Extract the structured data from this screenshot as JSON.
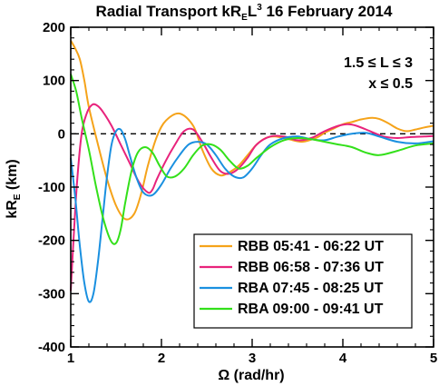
{
  "chart_data": {
    "type": "line",
    "title": {
      "prefix": "Radial Transport kR",
      "sub": "E",
      "mid": "L",
      "sup": "3",
      "suffix": " 16 February 2014"
    },
    "xlabel": "Ω (rad/hr)",
    "ylabel": {
      "main": "kR",
      "sub": "E",
      "unit": " (km)"
    },
    "xlim": [
      1,
      5
    ],
    "ylim": [
      -400,
      200
    ],
    "xticks": [
      1,
      2,
      3,
      4,
      5
    ],
    "yticks": [
      200,
      100,
      0,
      -100,
      -200,
      -300,
      -400
    ],
    "annotations": [
      "1.5 ≤ L ≤ 3",
      "x ≤ 0.5"
    ],
    "zero_line": "dashed",
    "legend_position": "lower-right",
    "series": [
      {
        "name": "RBB 05:41 - 06:22 UT",
        "color": "#f5a31a",
        "x": [
          1.0,
          1.05,
          1.1,
          1.15,
          1.2,
          1.3,
          1.4,
          1.5,
          1.6,
          1.7,
          1.78,
          1.85,
          1.95,
          2.05,
          2.2,
          2.35,
          2.45,
          2.55,
          2.65,
          2.75,
          2.85,
          2.95,
          3.05,
          3.15,
          3.25,
          3.4,
          3.55,
          3.7,
          3.8,
          3.9,
          4.0,
          4.1,
          4.2,
          4.32,
          4.4,
          4.5,
          4.6,
          4.7,
          4.8,
          4.9,
          5.0
        ],
        "y": [
          175,
          160,
          140,
          100,
          50,
          -20,
          -85,
          -135,
          -160,
          -150,
          -110,
          -60,
          -5,
          25,
          38,
          15,
          -30,
          -65,
          -78,
          -72,
          -60,
          -40,
          -20,
          -8,
          -5,
          -10,
          -15,
          -8,
          2,
          10,
          18,
          22,
          27,
          30,
          28,
          20,
          10,
          5,
          8,
          12,
          15
        ]
      },
      {
        "name": "RBB 06:58 - 07:36 UT",
        "color": "#e8237c",
        "x": [
          1.0,
          1.03,
          1.07,
          1.12,
          1.18,
          1.24,
          1.3,
          1.36,
          1.45,
          1.55,
          1.65,
          1.75,
          1.85,
          1.9,
          1.95,
          2.05,
          2.15,
          2.25,
          2.35,
          2.45,
          2.55,
          2.65,
          2.75,
          2.85,
          2.95,
          3.05,
          3.2,
          3.35,
          3.5,
          3.65,
          3.8,
          3.95,
          4.05,
          4.15,
          4.3,
          4.45,
          4.6,
          4.75,
          4.9,
          5.0
        ],
        "y": [
          -295,
          -200,
          -90,
          0,
          40,
          55,
          52,
          40,
          15,
          -20,
          -55,
          -90,
          -110,
          -105,
          -85,
          -50,
          -20,
          5,
          8,
          -15,
          -45,
          -70,
          -75,
          -65,
          -45,
          -20,
          -5,
          -5,
          -12,
          -8,
          5,
          15,
          18,
          15,
          5,
          -5,
          -8,
          -6,
          -5,
          -4
        ]
      },
      {
        "name": "RBA 07:45 - 08:25 UT",
        "color": "#1a90e0",
        "x": [
          1.0,
          1.05,
          1.1,
          1.15,
          1.2,
          1.25,
          1.3,
          1.35,
          1.4,
          1.45,
          1.5,
          1.55,
          1.6,
          1.65,
          1.72,
          1.8,
          1.9,
          2.0,
          2.1,
          2.2,
          2.3,
          2.4,
          2.5,
          2.6,
          2.7,
          2.8,
          2.9,
          3.0,
          3.1,
          3.2,
          3.35,
          3.5,
          3.65,
          3.8,
          3.95,
          4.1,
          4.25,
          4.4,
          4.6,
          4.8,
          5.0
        ],
        "y": [
          -45,
          -120,
          -210,
          -280,
          -315,
          -300,
          -240,
          -160,
          -80,
          -20,
          5,
          8,
          -10,
          -40,
          -80,
          -110,
          -115,
          -95,
          -65,
          -40,
          -20,
          -15,
          -20,
          -40,
          -65,
          -80,
          -82,
          -65,
          -40,
          -20,
          -8,
          -5,
          -10,
          -12,
          -5,
          0,
          2,
          -5,
          -15,
          -18,
          -14
        ]
      },
      {
        "name": "RBA 09:00 - 09:41 UT",
        "color": "#33e01a",
        "x": [
          1.0,
          1.06,
          1.12,
          1.2,
          1.28,
          1.36,
          1.44,
          1.5,
          1.55,
          1.6,
          1.67,
          1.74,
          1.82,
          1.9,
          1.98,
          2.06,
          2.15,
          2.25,
          2.35,
          2.45,
          2.55,
          2.65,
          2.75,
          2.85,
          2.95,
          3.05,
          3.2,
          3.35,
          3.5,
          3.65,
          3.8,
          3.95,
          4.1,
          4.25,
          4.4,
          4.6,
          4.8,
          5.0
        ],
        "y": [
          112,
          80,
          30,
          -30,
          -100,
          -160,
          -200,
          -205,
          -180,
          -130,
          -70,
          -35,
          -25,
          -35,
          -60,
          -80,
          -80,
          -65,
          -40,
          -22,
          -20,
          -30,
          -50,
          -65,
          -60,
          -45,
          -25,
          -12,
          -8,
          -10,
          -15,
          -20,
          -25,
          -35,
          -40,
          -32,
          -22,
          -18
        ]
      }
    ]
  }
}
